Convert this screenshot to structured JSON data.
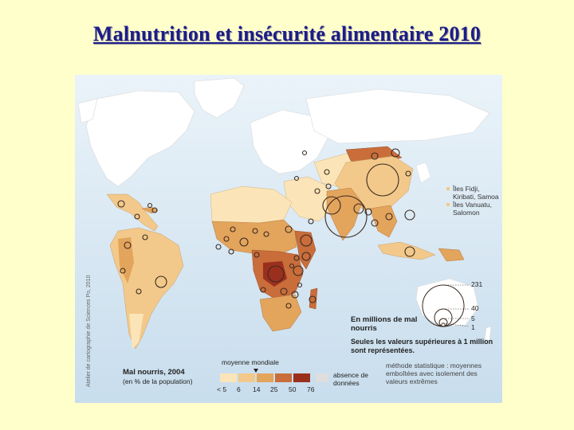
{
  "slide": {
    "title": "Malnutrition et insécurité alimentaire 2010"
  },
  "map": {
    "credit": "Atelier de cartographie de Sciences Po, 2010",
    "islands": [
      "Îles Fidji, Kiribati, Samoa",
      "Îles Vanuatu, Salomon"
    ],
    "legend": {
      "unit_label": "En millions de mal nourris",
      "circle_values": [
        "231",
        "40",
        "5",
        "1"
      ],
      "threshold_note": "Seules les valeurs supérieures à 1 million sont représentées.",
      "choropleth_title": "Mal nourris, 2004",
      "choropleth_subtitle": "(en % de la population)",
      "world_average_label": "moyenne mondiale",
      "class_breaks": [
        "< 5",
        "6",
        "14",
        "25",
        "50",
        "76"
      ],
      "class_colors": [
        "#fbe5b8",
        "#f2c98a",
        "#e3a45c",
        "#c96d3a",
        "#9b2f1e"
      ],
      "no_data_label": "absence de données",
      "no_data_color": "#dedede",
      "method_note": "méthode statistique : moyennes emboîtées avec isolement des valeurs extrêmes"
    },
    "colors": {
      "ocean": "#d4e6f2",
      "circle_stroke": "#3a2a20"
    }
  }
}
